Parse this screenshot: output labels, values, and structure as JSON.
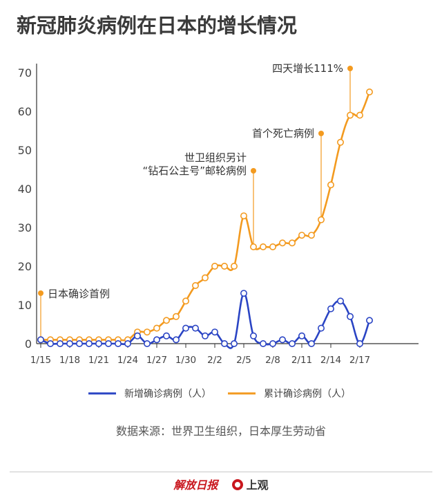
{
  "title": "新冠肺炎病例在日本的增长情况",
  "source": "数据来源：世界卫生组织，日本厚生劳动省",
  "brand": {
    "paper": "解放日报",
    "app": "上观"
  },
  "colors": {
    "new": "#2a44c4",
    "total": "#f39a1f",
    "axis": "#333333",
    "text": "#444444"
  },
  "chart_data": {
    "type": "line",
    "title": "新冠肺炎病例在日本的增长情况",
    "x_tick_labels": [
      "1/15",
      "1/18",
      "1/21",
      "1/24",
      "1/27",
      "1/30",
      "2/2",
      "2/5",
      "2/8",
      "2/11",
      "2/14",
      "2/17"
    ],
    "x": [
      "1/15",
      "1/16",
      "1/17",
      "1/18",
      "1/19",
      "1/20",
      "1/21",
      "1/22",
      "1/23",
      "1/24",
      "1/25",
      "1/26",
      "1/27",
      "1/28",
      "1/29",
      "1/30",
      "1/31",
      "2/1",
      "2/2",
      "2/3",
      "2/4",
      "2/5",
      "2/6",
      "2/7",
      "2/8",
      "2/9",
      "2/10",
      "2/11",
      "2/12",
      "2/13",
      "2/14",
      "2/15",
      "2/16",
      "2/17",
      "2/18"
    ],
    "ylim": [
      0,
      70
    ],
    "yticks": [
      0,
      10,
      20,
      30,
      40,
      50,
      60,
      70
    ],
    "series": [
      {
        "name": "新增确诊病例（人）",
        "color": "#2a44c4",
        "values": [
          1,
          0,
          0,
          0,
          0,
          0,
          0,
          0,
          0,
          0,
          2,
          0,
          1,
          2,
          1,
          4,
          4,
          2,
          3,
          0,
          0,
          13,
          2,
          0,
          0,
          1,
          0,
          2,
          0,
          4,
          9,
          11,
          7,
          0,
          6
        ]
      },
      {
        "name": "累计确诊病例（人）",
        "color": "#f39a1f",
        "values": [
          1,
          1,
          1,
          1,
          1,
          1,
          1,
          1,
          1,
          1,
          3,
          3,
          4,
          6,
          7,
          11,
          15,
          17,
          20,
          20,
          20,
          33,
          25,
          25,
          25,
          26,
          26,
          28,
          28,
          32,
          41,
          52,
          59,
          59,
          65
        ]
      }
    ],
    "annotations": [
      {
        "text": [
          "日本确诊首例"
        ],
        "x": "1/15",
        "y": 1
      },
      {
        "text": [
          "世卫组织另计",
          "“钻石公主号”邮轮病例"
        ],
        "x": "2/6",
        "y": 25
      },
      {
        "text": [
          "首个死亡病例"
        ],
        "x": "2/13",
        "y": 32
      },
      {
        "text": [
          "四天增长111%"
        ],
        "x": "2/16",
        "y": 59
      }
    ],
    "legend": "bottom-center"
  }
}
